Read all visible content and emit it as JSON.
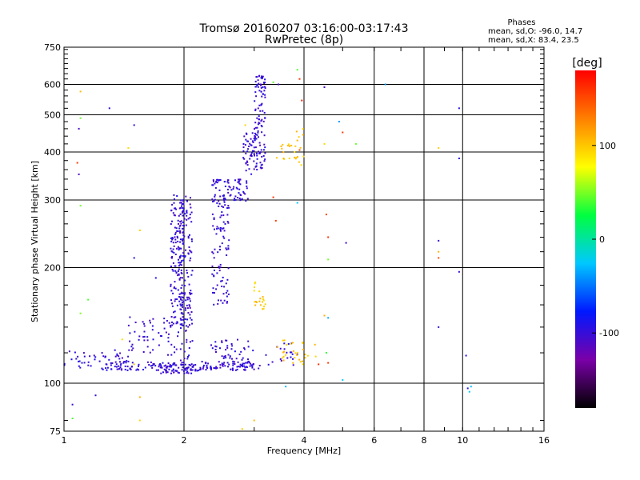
{
  "header": {
    "title": "Tromsø 20160207 03:16:00-03:17:43",
    "subtitle": "RwPretec (8p)"
  },
  "phases": {
    "heading": "Phases",
    "line_o": "mean, sd,O: -96.0, 14.7",
    "line_x": "mean, sd,X: 83.4, 23.5"
  },
  "colorbar": {
    "label": "deg",
    "ticks": [
      "100",
      "0",
      "-100"
    ],
    "tick_values": [
      100,
      0,
      -100
    ],
    "range": [
      -180,
      180
    ],
    "colors": [
      "#000000",
      "#7a00a8",
      "#0018ff",
      "#00c8ff",
      "#00ff40",
      "#ffff00",
      "#ff8000",
      "#ff0000"
    ]
  },
  "chart_data": {
    "type": "scatter",
    "xlabel": "Frequency [MHz]",
    "ylabel": "Stationary phase Virtual Height [km]",
    "xscale": "log",
    "yscale": "log",
    "xlim": [
      1,
      16
    ],
    "ylim": [
      75,
      750
    ],
    "x_ticks": [
      1,
      2,
      4,
      6,
      8,
      10,
      16
    ],
    "x_tick_labels": [
      "1",
      "2",
      "4",
      "6",
      "8",
      "10",
      "16"
    ],
    "y_ticks": [
      75,
      100,
      200,
      300,
      400,
      500,
      600,
      750
    ],
    "y_tick_labels": [
      "75",
      "100",
      "200",
      "300",
      "400",
      "500",
      "600",
      "750"
    ],
    "grid": true,
    "series": [
      {
        "clusters": [
          {
            "f": [
              1.0,
              1.45
            ],
            "h": [
              108,
              122
            ],
            "n": 50
          },
          {
            "f": [
              1.25,
              1.9
            ],
            "h": [
              108,
              114
            ],
            "n": 70
          },
          {
            "f": [
              1.45,
              1.95
            ],
            "h": [
              118,
              150
            ],
            "n": 55
          },
          {
            "f": [
              1.85,
              2.0
            ],
            "h": [
              140,
              310
            ],
            "n": 150
          },
          {
            "f": [
              1.95,
              2.1
            ],
            "h": [
              108,
              310
            ],
            "n": 150
          },
          {
            "f": [
              1.75,
              2.2
            ],
            "h": [
              106,
              112
            ],
            "n": 60
          },
          {
            "f": [
              2.35,
              2.6
            ],
            "h": [
              160,
              300
            ],
            "n": 90
          },
          {
            "f": [
              2.2,
              3.1
            ],
            "h": [
              108,
              114
            ],
            "n": 80
          },
          {
            "f": [
              2.35,
              2.9
            ],
            "h": [
              298,
              340
            ],
            "n": 80
          },
          {
            "f": [
              2.8,
              3.05
            ],
            "h": [
              350,
              450
            ],
            "n": 60
          },
          {
            "f": [
              3.0,
              3.2
            ],
            "h": [
              360,
              640
            ],
            "n": 100
          },
          {
            "f": [
              2.3,
              3.0
            ],
            "h": [
              115,
              130
            ],
            "n": 40
          },
          {
            "f": [
              3.2,
              3.9
            ],
            "h": [
              110,
              128
            ],
            "n": 20
          }
        ],
        "phase": -100,
        "sparse_points": [
          [
            1.3,
            520
          ],
          [
            1.5,
            470
          ],
          [
            1.09,
            460
          ],
          [
            1.09,
            350
          ],
          [
            1.5,
            212
          ],
          [
            1.7,
            188
          ],
          [
            1.2,
            93
          ],
          [
            3.45,
            600
          ],
          [
            4.5,
            590
          ],
          [
            9.8,
            520
          ],
          [
            9.8,
            385
          ],
          [
            8.7,
            235
          ],
          [
            8.7,
            140
          ],
          [
            9.8,
            195
          ],
          [
            10.2,
            118
          ],
          [
            10.3,
            97
          ],
          [
            5.1,
            232
          ],
          [
            1.05,
            88
          ]
        ]
      },
      {
        "clusters": [
          {
            "f": [
              3.0,
              3.2
            ],
            "h": [
              155,
              185
            ],
            "n": 20
          },
          {
            "f": [
              3.4,
              3.9
            ],
            "h": [
              380,
              420
            ],
            "n": 15
          },
          {
            "f": [
              3.4,
              4.4
            ],
            "h": [
              112,
              130
            ],
            "n": 30
          },
          {
            "f": [
              3.8,
              4.0
            ],
            "h": [
              350,
              460
            ],
            "n": 12
          }
        ],
        "phase": 100,
        "sparse_points": [
          [
            1.1,
            575
          ],
          [
            1.45,
            410
          ],
          [
            1.55,
            250
          ],
          [
            1.4,
            130
          ],
          [
            1.5,
            112
          ],
          [
            1.55,
            92
          ],
          [
            1.55,
            80
          ],
          [
            2.85,
            470
          ],
          [
            3.0,
            80
          ],
          [
            2.8,
            76
          ],
          [
            8.7,
            410
          ],
          [
            8.7,
            220
          ],
          [
            4.5,
            420
          ],
          [
            4.5,
            150
          ]
        ]
      },
      {
        "clusters": [],
        "phase": 160,
        "sparse_points": [
          [
            3.35,
            305
          ],
          [
            3.4,
            265
          ],
          [
            3.9,
            620
          ],
          [
            3.95,
            545
          ],
          [
            4.55,
            275
          ],
          [
            4.6,
            240
          ],
          [
            5.0,
            450
          ],
          [
            8.7,
            212
          ],
          [
            4.6,
            113
          ],
          [
            1.08,
            375
          ],
          [
            3.9,
            405
          ],
          [
            4.35,
            112
          ]
        ]
      },
      {
        "clusters": [],
        "phase": 40,
        "sparse_points": [
          [
            1.1,
            490
          ],
          [
            1.1,
            290
          ],
          [
            1.15,
            165
          ],
          [
            1.1,
            152
          ],
          [
            3.35,
            608
          ],
          [
            3.85,
            655
          ],
          [
            4.6,
            210
          ],
          [
            5.4,
            420
          ],
          [
            1.05,
            81
          ],
          [
            4.55,
            120
          ]
        ]
      },
      {
        "clusters": [],
        "phase": -30,
        "sparse_points": [
          [
            6.4,
            600
          ],
          [
            10.5,
            98
          ],
          [
            10.4,
            95
          ],
          [
            5.0,
            102
          ],
          [
            4.9,
            480
          ],
          [
            4.6,
            148
          ],
          [
            3.6,
            98
          ],
          [
            3.85,
            295
          ]
        ]
      }
    ]
  }
}
